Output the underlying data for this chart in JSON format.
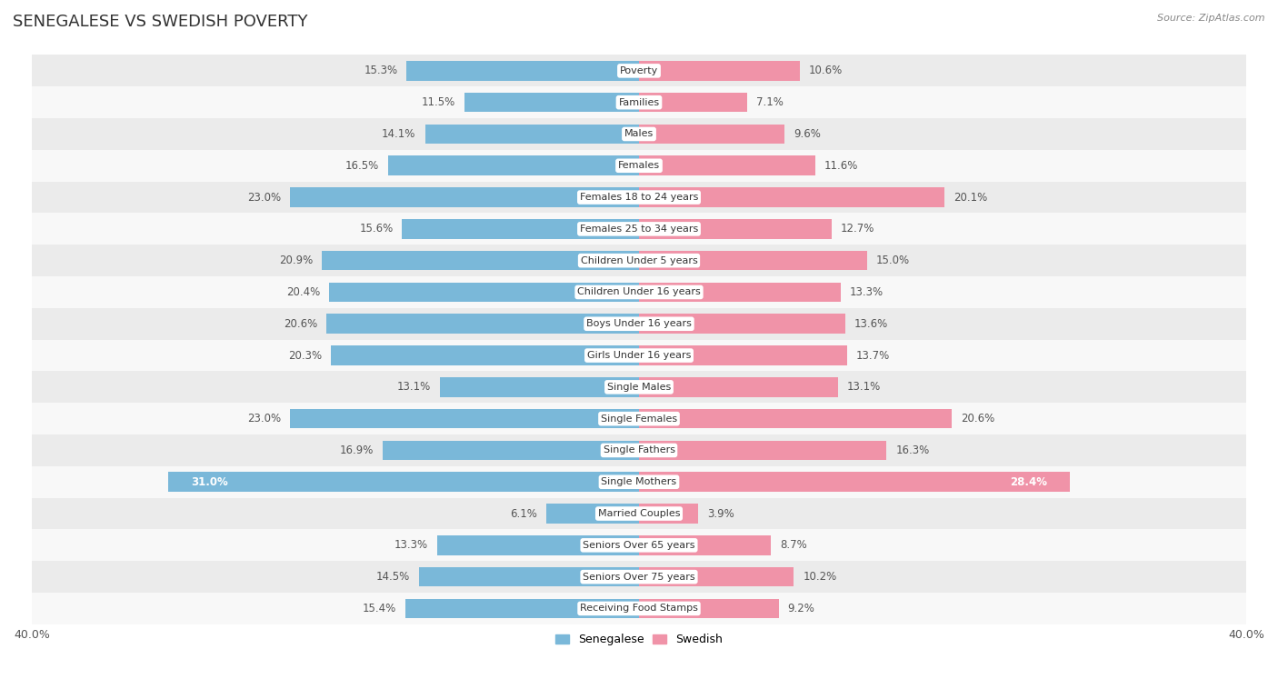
{
  "title": "SENEGALESE VS SWEDISH POVERTY",
  "source": "Source: ZipAtlas.com",
  "categories": [
    "Poverty",
    "Families",
    "Males",
    "Females",
    "Females 18 to 24 years",
    "Females 25 to 34 years",
    "Children Under 5 years",
    "Children Under 16 years",
    "Boys Under 16 years",
    "Girls Under 16 years",
    "Single Males",
    "Single Females",
    "Single Fathers",
    "Single Mothers",
    "Married Couples",
    "Seniors Over 65 years",
    "Seniors Over 75 years",
    "Receiving Food Stamps"
  ],
  "senegalese": [
    15.3,
    11.5,
    14.1,
    16.5,
    23.0,
    15.6,
    20.9,
    20.4,
    20.6,
    20.3,
    13.1,
    23.0,
    16.9,
    31.0,
    6.1,
    13.3,
    14.5,
    15.4
  ],
  "swedish": [
    10.6,
    7.1,
    9.6,
    11.6,
    20.1,
    12.7,
    15.0,
    13.3,
    13.6,
    13.7,
    13.1,
    20.6,
    16.3,
    28.4,
    3.9,
    8.7,
    10.2,
    9.2
  ],
  "senegalese_color": "#7ab8d9",
  "swedish_color": "#f093a8",
  "background_row_even": "#ebebeb",
  "background_row_odd": "#f8f8f8",
  "axis_limit": 40.0,
  "bar_height": 0.62,
  "title_fontsize": 13,
  "label_fontsize": 8.5,
  "category_fontsize": 8.0,
  "tick_fontsize": 9,
  "legend_fontsize": 9,
  "white_label_indices": [
    13
  ]
}
